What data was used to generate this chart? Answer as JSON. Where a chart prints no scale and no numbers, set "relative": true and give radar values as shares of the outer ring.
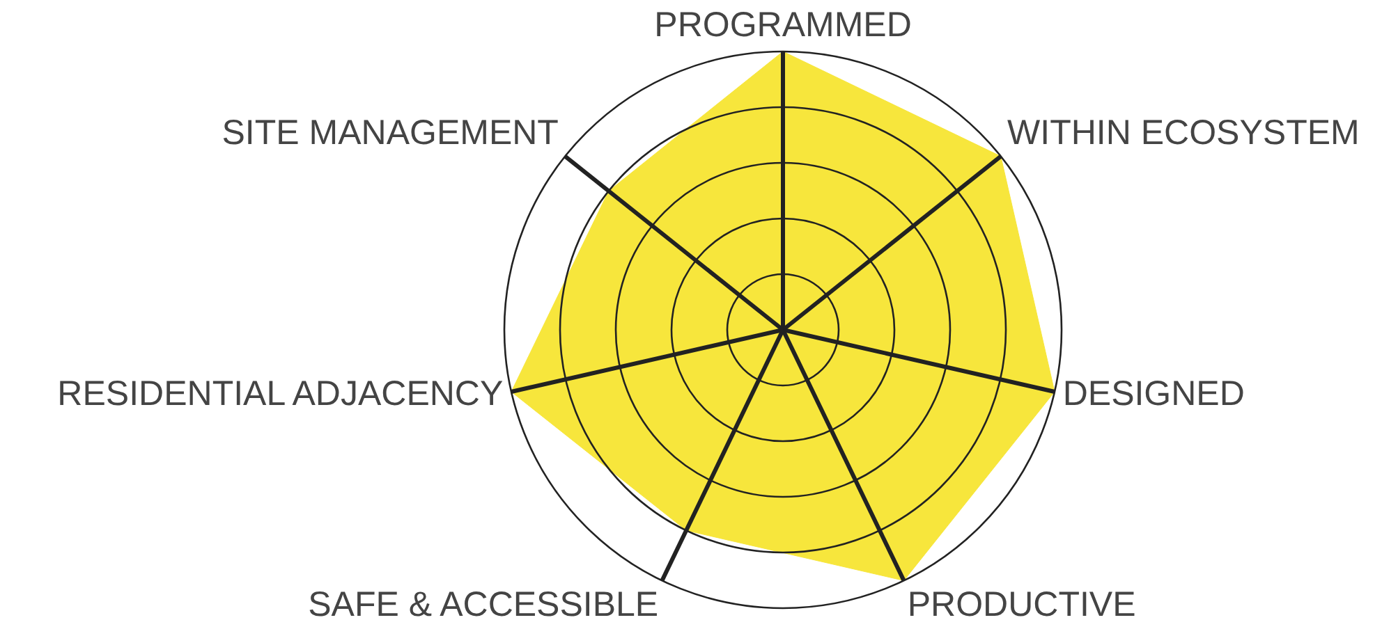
{
  "chart_data": {
    "type": "radar",
    "relative": true,
    "grid": true,
    "categories": [
      "PROGRAMMED",
      "WITHIN ECOSYSTEM",
      "DESIGNED",
      "PRODUCTIVE",
      "SAFE & ACCESSIBLE",
      "RESIDENTIAL ADJACENCY",
      "SITE MANAGEMENT"
    ],
    "series": [
      {
        "color": "#f7e63c",
        "values": [
          1.0,
          1.0,
          1.0,
          1.0,
          0.8,
          1.0,
          0.8
        ]
      }
    ]
  }
}
